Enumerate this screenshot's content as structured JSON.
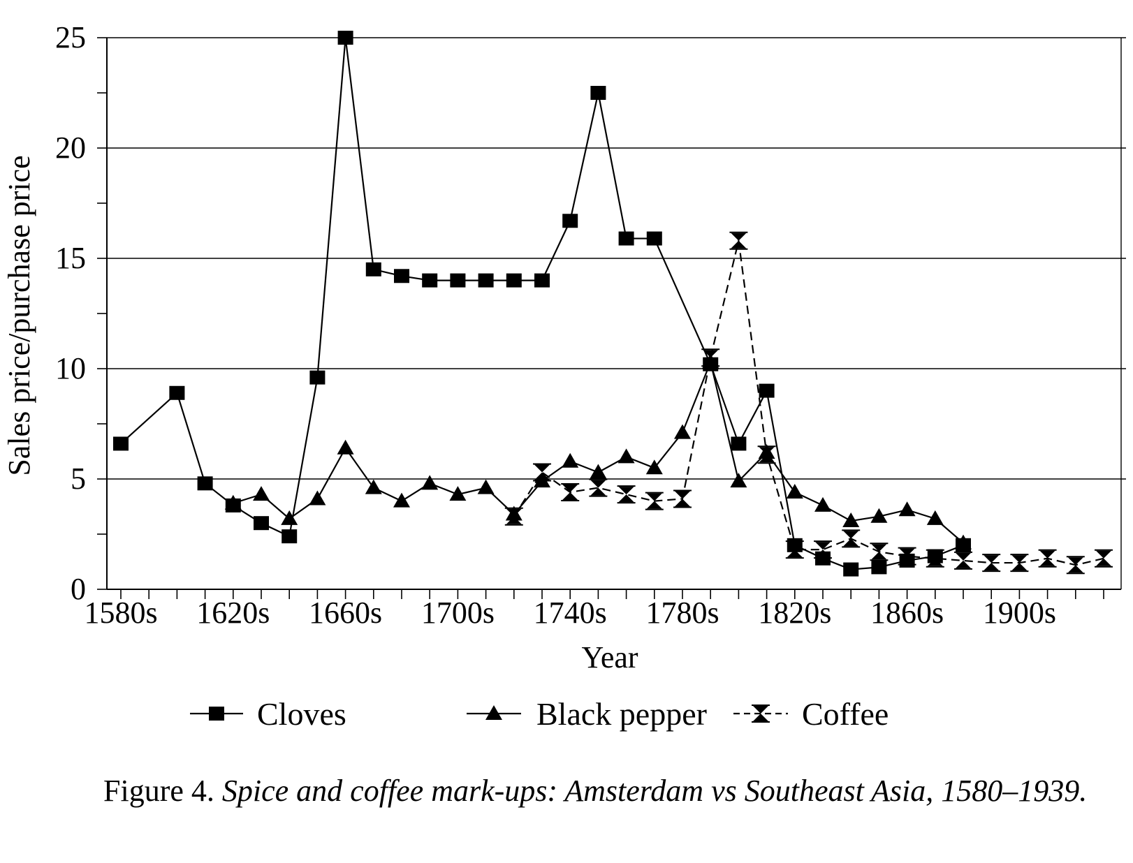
{
  "chart_data": {
    "type": "line",
    "xlabel": "Year",
    "ylabel": "Sales price/purchase price",
    "ylim": [
      0,
      25
    ],
    "yticks": [
      0,
      5,
      10,
      15,
      20,
      25
    ],
    "xlim": [
      "1580s",
      "1930s"
    ],
    "x": [
      "1580s",
      "1590s",
      "1600s",
      "1610s",
      "1620s",
      "1630s",
      "1640s",
      "1650s",
      "1660s",
      "1670s",
      "1680s",
      "1690s",
      "1700s",
      "1710s",
      "1720s",
      "1730s",
      "1740s",
      "1750s",
      "1760s",
      "1770s",
      "1780s",
      "1790s",
      "1800s",
      "1810s",
      "1820s",
      "1830s",
      "1840s",
      "1850s",
      "1860s",
      "1870s",
      "1880s",
      "1890s",
      "1900s",
      "1910s",
      "1920s",
      "1930s"
    ],
    "x_tick_labels": [
      "1580s",
      "1620s",
      "1660s",
      "1700s",
      "1740s",
      "1780s",
      "1820s",
      "1860s",
      "1900s"
    ],
    "grid": "horizontal at 5, 10, 15, 20",
    "legend_position": "bottom",
    "series": [
      {
        "name": "Cloves",
        "marker": "square",
        "line": "solid",
        "points": [
          [
            "1580s",
            6.6
          ],
          [
            "1600s",
            8.9
          ],
          [
            "1610s",
            4.8
          ],
          [
            "1620s",
            3.8
          ],
          [
            "1630s",
            3.0
          ],
          [
            "1640s",
            2.4
          ],
          [
            "1650s",
            9.6
          ],
          [
            "1660s",
            25.0
          ],
          [
            "1670s",
            14.5
          ],
          [
            "1680s",
            14.2
          ],
          [
            "1690s",
            14.0
          ],
          [
            "1700s",
            14.0
          ],
          [
            "1710s",
            14.0
          ],
          [
            "1720s",
            14.0
          ],
          [
            "1730s",
            14.0
          ],
          [
            "1740s",
            16.7
          ],
          [
            "1750s",
            22.5
          ],
          [
            "1760s",
            15.9
          ],
          [
            "1770s",
            15.9
          ],
          [
            "1790s",
            10.2
          ],
          [
            "1800s",
            6.6
          ],
          [
            "1810s",
            9.0
          ],
          [
            "1820s",
            2.0
          ],
          [
            "1830s",
            1.4
          ],
          [
            "1840s",
            0.9
          ],
          [
            "1850s",
            1.0
          ],
          [
            "1860s",
            1.3
          ],
          [
            "1870s",
            1.5
          ],
          [
            "1880s",
            2.0
          ]
        ]
      },
      {
        "name": "Black pepper",
        "marker": "triangle",
        "line": "solid",
        "points": [
          [
            "1620s",
            3.9
          ],
          [
            "1630s",
            4.3
          ],
          [
            "1640s",
            3.2
          ],
          [
            "1650s",
            4.1
          ],
          [
            "1660s",
            6.4
          ],
          [
            "1670s",
            4.6
          ],
          [
            "1680s",
            4.0
          ],
          [
            "1690s",
            4.8
          ],
          [
            "1700s",
            4.3
          ],
          [
            "1710s",
            4.6
          ],
          [
            "1720s",
            3.4
          ],
          [
            "1730s",
            4.9
          ],
          [
            "1740s",
            5.8
          ],
          [
            "1750s",
            5.3
          ],
          [
            "1760s",
            6.0
          ],
          [
            "1770s",
            5.5
          ],
          [
            "1780s",
            7.1
          ],
          [
            "1790s",
            10.3
          ],
          [
            "1800s",
            4.9
          ],
          [
            "1810s",
            6.2
          ],
          [
            "1820s",
            4.4
          ],
          [
            "1830s",
            3.8
          ],
          [
            "1840s",
            3.1
          ],
          [
            "1850s",
            3.3
          ],
          [
            "1860s",
            3.6
          ],
          [
            "1870s",
            3.2
          ],
          [
            "1880s",
            2.1
          ]
        ]
      },
      {
        "name": "Coffee",
        "marker": "hourglass",
        "line": "dashed",
        "points": [
          [
            "1720s",
            3.3
          ],
          [
            "1730s",
            5.3
          ],
          [
            "1740s",
            4.4
          ],
          [
            "1750s",
            4.6
          ],
          [
            "1760s",
            4.3
          ],
          [
            "1770s",
            4.0
          ],
          [
            "1780s",
            4.1
          ],
          [
            "1790s",
            10.5
          ],
          [
            "1800s",
            15.8
          ],
          [
            "1810s",
            6.1
          ],
          [
            "1820s",
            1.8
          ],
          [
            "1830s",
            1.8
          ],
          [
            "1840s",
            2.3
          ],
          [
            "1850s",
            1.7
          ],
          [
            "1860s",
            1.5
          ],
          [
            "1870s",
            1.4
          ],
          [
            "1880s",
            1.3
          ],
          [
            "1890s",
            1.2
          ],
          [
            "1900s",
            1.2
          ],
          [
            "1910s",
            1.4
          ],
          [
            "1920s",
            1.1
          ],
          [
            "1930s",
            1.4
          ]
        ]
      }
    ]
  },
  "caption": {
    "label": "Figure 4.",
    "text": "Spice and coffee mark-ups: Amsterdam vs Southeast Asia, 1580–1939."
  }
}
